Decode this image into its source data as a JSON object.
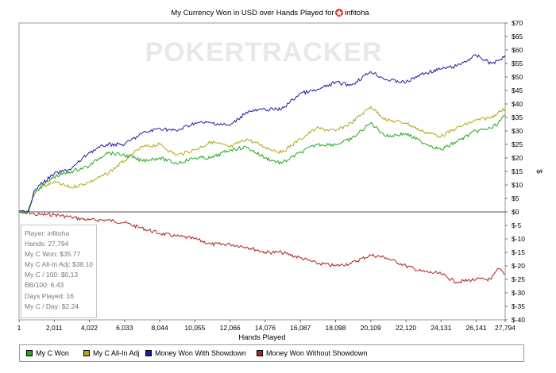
{
  "title_prefix": "My Currency Won in USD over Hands Played for",
  "player_name": "infitoha",
  "watermark": "POKERTRACKER",
  "stats": [
    "Player: infitoha",
    "Hands: 27,794",
    "My C Won: $35.77",
    "My C All-In Adj: $38.10",
    "My C / 100: $0.13",
    "BB/100: 6.43",
    "Days Played: 16",
    "My C / Day: $2.24"
  ],
  "chart_data": {
    "type": "line",
    "title": "My Currency Won in USD over Hands Played for infitoha",
    "xlabel": "Hands Played",
    "ylabel": "$",
    "xlim": [
      1,
      27794
    ],
    "ylim": [
      -40,
      70
    ],
    "x_ticks": [
      "1",
      "2,011",
      "4,022",
      "6,033",
      "8,044",
      "10,055",
      "12,066",
      "14,076",
      "16,087",
      "18,098",
      "20,109",
      "22,120",
      "24,131",
      "26,141",
      "27,794"
    ],
    "x_tick_values": [
      1,
      2011,
      4022,
      6033,
      8044,
      10055,
      12066,
      14076,
      16087,
      18098,
      20109,
      22120,
      24131,
      26141,
      27794
    ],
    "y_ticks": [
      "$70",
      "$65",
      "$60",
      "$55",
      "$50",
      "$45",
      "$40",
      "$35",
      "$30",
      "$25",
      "$20",
      "$15",
      "$10",
      "$5",
      "$0",
      "$-5",
      "$-10",
      "$-15",
      "$-20",
      "$-25",
      "$-30",
      "$-35",
      "$-40"
    ],
    "y_tick_values": [
      70,
      65,
      60,
      55,
      50,
      45,
      40,
      35,
      30,
      25,
      20,
      15,
      10,
      5,
      0,
      -5,
      -10,
      -15,
      -20,
      -25,
      -30,
      -35,
      -40
    ],
    "grid": false,
    "legend_position": "bottom",
    "series": [
      {
        "name": "My C Won",
        "color": "#23a823",
        "x": [
          1,
          500,
          900,
          1200,
          2000,
          3000,
          4000,
          5000,
          6033,
          7000,
          8044,
          9000,
          10055,
          11000,
          12066,
          13000,
          14076,
          15000,
          16087,
          17000,
          18098,
          19000,
          20109,
          21000,
          22120,
          23000,
          24131,
          25000,
          26141,
          27000,
          27400,
          27794
        ],
        "y": [
          0,
          0,
          7,
          9,
          13,
          15,
          17,
          22,
          21,
          19,
          20,
          18,
          20,
          20,
          23,
          24,
          20,
          18,
          22,
          25,
          25,
          27,
          33,
          28,
          29,
          26,
          23,
          26,
          30,
          31,
          33,
          35.77
        ]
      },
      {
        "name": "My C All-In Adj",
        "color": "#b0a919",
        "x": [
          1,
          500,
          900,
          1200,
          2000,
          3000,
          4000,
          5000,
          6033,
          7000,
          8044,
          9000,
          10055,
          11000,
          12066,
          13000,
          14076,
          15000,
          16087,
          17000,
          18098,
          19000,
          20109,
          21000,
          22120,
          23000,
          24131,
          25000,
          26141,
          27000,
          27400,
          27794
        ],
        "y": [
          0,
          0,
          7,
          9,
          11,
          9,
          11,
          14,
          19,
          24,
          25,
          21,
          23,
          26,
          24,
          27,
          24,
          22,
          27,
          31,
          30,
          33,
          39,
          34,
          33,
          30,
          28,
          31,
          34,
          35,
          37,
          38.1
        ]
      },
      {
        "name": "Money Won With Showdown",
        "color": "#1c1ca8",
        "x": [
          1,
          500,
          900,
          1200,
          2000,
          3000,
          4000,
          5000,
          6033,
          7000,
          8044,
          9000,
          10055,
          11000,
          12066,
          13000,
          14076,
          15000,
          16087,
          17000,
          18098,
          19000,
          20109,
          21000,
          22120,
          23000,
          24131,
          25000,
          26141,
          27000,
          27400,
          27794
        ],
        "y": [
          0,
          0,
          8,
          10,
          14,
          16,
          22,
          25,
          25,
          29,
          31,
          30,
          33,
          33,
          32,
          37,
          38,
          38,
          44,
          45,
          48,
          47,
          52,
          49,
          48,
          51,
          53,
          54,
          58,
          55,
          56,
          58
        ]
      },
      {
        "name": "Money Won Without Showdown",
        "color": "#b22222",
        "x": [
          1,
          500,
          900,
          1200,
          2000,
          3000,
          4000,
          5000,
          6033,
          7000,
          8044,
          9000,
          10055,
          11000,
          12066,
          13000,
          14076,
          15000,
          16087,
          17000,
          18098,
          19000,
          20109,
          21000,
          22120,
          23000,
          24131,
          25000,
          26141,
          27000,
          27400,
          27794
        ],
        "y": [
          0,
          0,
          -1,
          -1,
          -1,
          -2,
          -3,
          -3,
          -4,
          -6,
          -8,
          -9,
          -10,
          -12,
          -12,
          -13,
          -15,
          -15,
          -17,
          -19,
          -20,
          -19,
          -16,
          -17,
          -20,
          -22,
          -23,
          -26,
          -25,
          -25,
          -21,
          -23
        ]
      }
    ]
  }
}
